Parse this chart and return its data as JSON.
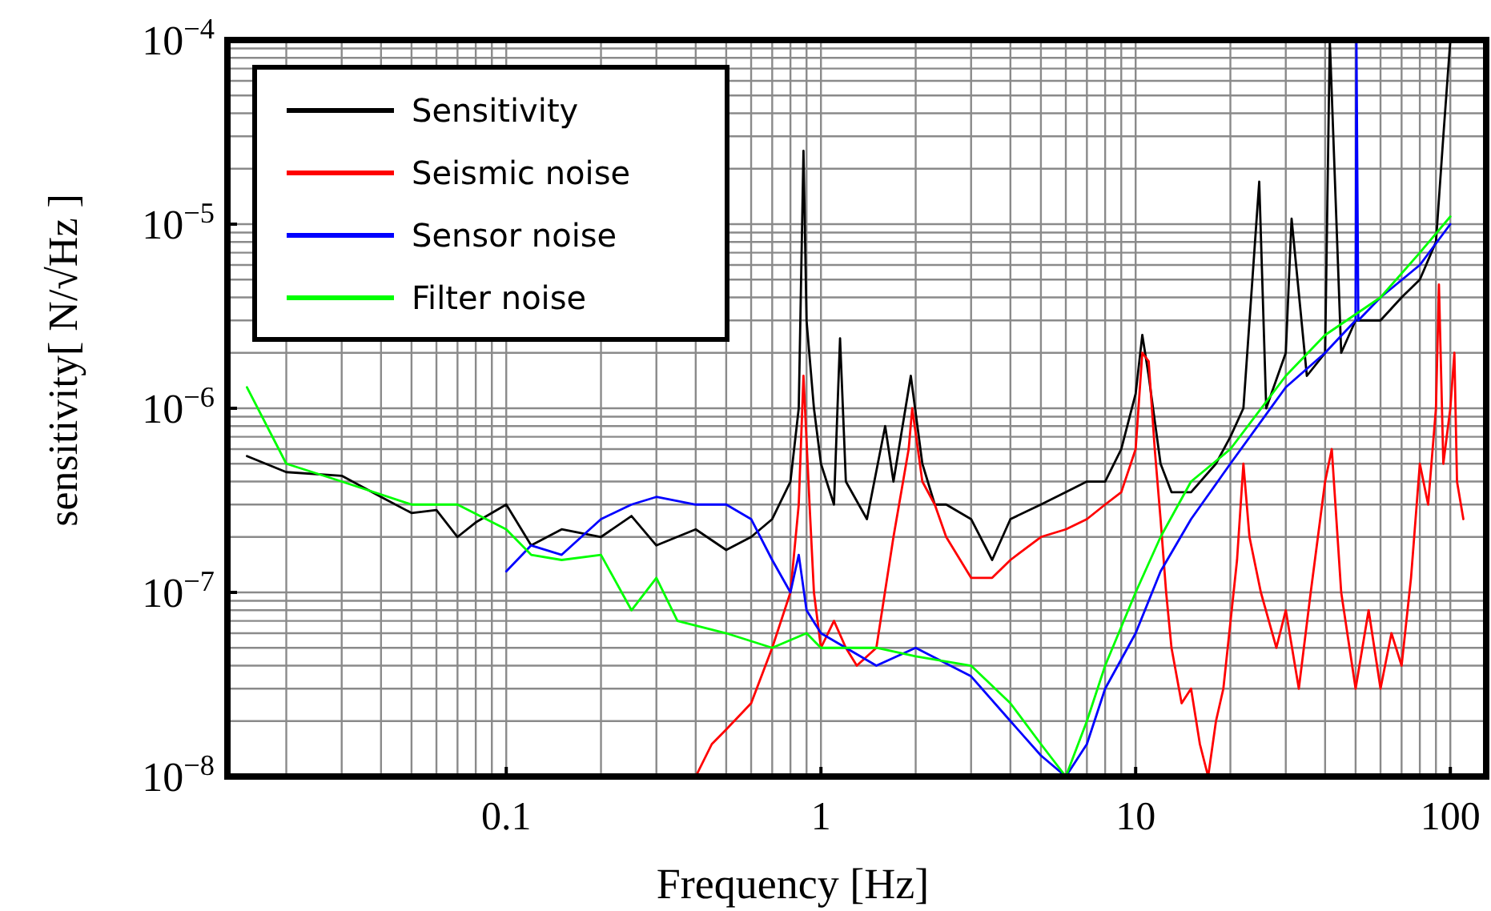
{
  "chart_data": {
    "type": "line",
    "xlabel": "Frequency [Hz]",
    "ylabel": "sensitivity[ N/√Hz ]",
    "log": "xy",
    "grid": true,
    "legend": "top left",
    "line_style": "solid",
    "marker": "none",
    "xlim": [
      0.013,
      130
    ],
    "ylim": [
      1e-08,
      0.0001
    ],
    "xticks": [
      {
        "value": 0.02,
        "label": null
      },
      {
        "value": 0.03,
        "label": null
      },
      {
        "value": 0.04,
        "label": null
      },
      {
        "value": 0.05,
        "label": null
      },
      {
        "value": 0.06,
        "label": null
      },
      {
        "value": 0.07,
        "label": null
      },
      {
        "value": 0.08,
        "label": null
      },
      {
        "value": 0.09,
        "label": null
      },
      0.1,
      {
        "value": 0.2,
        "label": null
      },
      {
        "value": 0.3,
        "label": null
      },
      {
        "value": 0.4,
        "label": null
      },
      {
        "value": 0.5,
        "label": null
      },
      {
        "value": 0.6,
        "label": null
      },
      {
        "value": 0.7,
        "label": null
      },
      {
        "value": 0.8,
        "label": null
      },
      {
        "value": 0.9,
        "label": null
      },
      1,
      {
        "value": 2,
        "label": null
      },
      {
        "value": 3,
        "label": null
      },
      {
        "value": 4,
        "label": null
      },
      {
        "value": 5,
        "label": null
      },
      {
        "value": 6,
        "label": null
      },
      {
        "value": 7,
        "label": null
      },
      {
        "value": 8,
        "label": null
      },
      {
        "value": 9,
        "label": null
      },
      10,
      {
        "value": 20,
        "label": null
      },
      {
        "value": 30,
        "label": null
      },
      {
        "value": 40,
        "label": null
      },
      {
        "value": 50,
        "label": null
      },
      {
        "value": 60,
        "label": null
      },
      {
        "value": 70,
        "label": null
      },
      {
        "value": 80,
        "label": null
      },
      {
        "value": 90,
        "label": null
      },
      100
    ],
    "yticks": [
      {
        "value": 1e-08,
        "label": "10$^{−8}$"
      },
      {
        "value": 2e-08,
        "label": null
      },
      {
        "value": 3e-08,
        "label": null
      },
      {
        "value": 4e-08,
        "label": null
      },
      {
        "value": 5e-08,
        "label": null
      },
      {
        "value": 6e-08,
        "label": null
      },
      {
        "value": 7e-08,
        "label": null
      },
      {
        "value": 8e-08,
        "label": null
      },
      {
        "value": 9e-08,
        "label": null
      },
      {
        "value": 1e-07,
        "label": "10$^{−7}$"
      },
      {
        "value": 2e-07,
        "label": null
      },
      {
        "value": 3e-07,
        "label": null
      },
      {
        "value": 4e-07,
        "label": null
      },
      {
        "value": 5e-07,
        "label": null
      },
      {
        "value": 6e-07,
        "label": null
      },
      {
        "value": 7e-07,
        "label": null
      },
      {
        "value": 8e-07,
        "label": null
      },
      {
        "value": 9e-07,
        "label": null
      },
      {
        "value": 1e-06,
        "label": "10$^{−6}$"
      },
      {
        "value": 2e-06,
        "label": null
      },
      {
        "value": 3e-06,
        "label": null
      },
      {
        "value": 4e-06,
        "label": null
      },
      {
        "value": 5e-06,
        "label": null
      },
      {
        "value": 6e-06,
        "label": null
      },
      {
        "value": 7e-06,
        "label": null
      },
      {
        "value": 8e-06,
        "label": null
      },
      {
        "value": 9e-06,
        "label": null
      },
      {
        "value": 1e-05,
        "label": "10$^{−5}$"
      },
      {
        "value": 2e-05,
        "label": null
      },
      {
        "value": 3e-05,
        "label": null
      },
      {
        "value": 4e-05,
        "label": null
      },
      {
        "value": 5e-05,
        "label": null
      },
      {
        "value": 6e-05,
        "label": null
      },
      {
        "value": 7e-05,
        "label": null
      },
      {
        "value": 8e-05,
        "label": null
      },
      {
        "value": 9e-05,
        "label": null
      },
      {
        "value": 0.0001,
        "label": "10$^{−4}$"
      }
    ],
    "series": [
      {
        "name": "Sensitivity",
        "color": "#000000",
        "x": [
          0.015,
          0.02,
          0.03,
          0.04,
          0.05,
          0.06,
          0.07,
          0.08,
          0.1,
          0.12,
          0.15,
          0.2,
          0.25,
          0.3,
          0.4,
          0.5,
          0.6,
          0.7,
          0.8,
          0.85,
          0.88,
          0.9,
          0.95,
          1.0,
          1.1,
          1.15,
          1.2,
          1.4,
          1.6,
          1.7,
          1.93,
          2.1,
          2.3,
          2.5,
          3,
          3.5,
          4,
          5,
          6,
          7,
          8,
          9,
          10,
          10.5,
          11,
          12,
          13,
          15,
          18,
          20,
          22,
          24.7,
          26,
          30,
          31.3,
          35,
          40,
          41.4,
          45,
          50,
          60,
          70,
          80,
          90,
          95,
          100
        ],
        "values": [
          5.5e-07,
          4.5e-07,
          4.3e-07,
          3.3e-07,
          2.7e-07,
          2.8e-07,
          2e-07,
          2.4e-07,
          3e-07,
          1.8e-07,
          2.2e-07,
          2e-07,
          2.6e-07,
          1.8e-07,
          2.2e-07,
          1.7e-07,
          2e-07,
          2.5e-07,
          4e-07,
          1e-06,
          2.5e-05,
          3e-06,
          1e-06,
          5e-07,
          3e-07,
          2.4e-06,
          4e-07,
          2.5e-07,
          8e-07,
          4e-07,
          1.5e-06,
          5e-07,
          3e-07,
          3e-07,
          2.5e-07,
          1.5e-07,
          2.5e-07,
          3e-07,
          3.5e-07,
          4e-07,
          4e-07,
          6e-07,
          1.2e-06,
          2.5e-06,
          1.5e-06,
          5e-07,
          3.5e-07,
          3.5e-07,
          5e-07,
          7e-07,
          1e-06,
          1.7e-05,
          1e-06,
          2e-06,
          1.07e-05,
          1.5e-06,
          2e-06,
          0.0001,
          2e-06,
          3e-06,
          3e-06,
          4e-06,
          5e-06,
          8e-06,
          3e-05,
          0.0001
        ]
      },
      {
        "name": "Seismic noise",
        "color": "#ff0000",
        "x": [
          0.4,
          0.45,
          0.5,
          0.6,
          0.7,
          0.8,
          0.85,
          0.88,
          0.92,
          0.95,
          1.0,
          1.1,
          1.2,
          1.3,
          1.5,
          1.7,
          1.9,
          1.95,
          2.1,
          2.3,
          2.5,
          3,
          3.5,
          4,
          5,
          6,
          7,
          8,
          9,
          10,
          10.5,
          11,
          11.5,
          12,
          12.5,
          13,
          14,
          15,
          16,
          17,
          18,
          19,
          21,
          22,
          23,
          25,
          28,
          30,
          33,
          36,
          40,
          42,
          45,
          50,
          55,
          60,
          65,
          70,
          75,
          80,
          85,
          90,
          92,
          95,
          100,
          103,
          105,
          110
        ],
        "values": [
          1e-08,
          1.5e-08,
          1.8e-08,
          2.5e-08,
          5e-08,
          1e-07,
          3e-07,
          1.5e-06,
          3e-07,
          1e-07,
          5e-08,
          7e-08,
          5e-08,
          4e-08,
          5e-08,
          2e-07,
          6e-07,
          1e-06,
          4e-07,
          3e-07,
          2e-07,
          1.2e-07,
          1.2e-07,
          1.5e-07,
          2e-07,
          2.2e-07,
          2.5e-07,
          3e-07,
          3.5e-07,
          6e-07,
          2e-06,
          1.8e-06,
          6e-07,
          2.5e-07,
          1e-07,
          5e-08,
          2.5e-08,
          3e-08,
          1.5e-08,
          1e-08,
          2e-08,
          3e-08,
          1.5e-07,
          5e-07,
          2e-07,
          1e-07,
          5e-08,
          8e-08,
          3e-08,
          1e-07,
          4e-07,
          6e-07,
          1e-07,
          3e-08,
          8e-08,
          3e-08,
          6e-08,
          4e-08,
          1.2e-07,
          5e-07,
          3e-07,
          1e-06,
          4.7e-06,
          5e-07,
          1e-06,
          2e-06,
          4e-07,
          2.5e-07
        ]
      },
      {
        "name": "Sensor noise",
        "color": "#0000ff",
        "x": [
          0.1,
          0.12,
          0.15,
          0.2,
          0.25,
          0.3,
          0.4,
          0.5,
          0.6,
          0.7,
          0.8,
          0.85,
          0.9,
          1.0,
          1.5,
          2,
          3,
          4,
          5,
          6,
          7,
          8,
          10,
          12,
          15,
          20,
          30,
          40,
          50,
          50.3,
          51,
          60,
          80,
          100
        ],
        "values": [
          1.3e-07,
          1.8e-07,
          1.6e-07,
          2.5e-07,
          3e-07,
          3.3e-07,
          3e-07,
          3e-07,
          2.5e-07,
          1.5e-07,
          1e-07,
          1.6e-07,
          8e-08,
          6e-08,
          4e-08,
          5e-08,
          3.5e-08,
          2e-08,
          1.3e-08,
          1e-08,
          1.5e-08,
          3e-08,
          6e-08,
          1.3e-07,
          2.5e-07,
          5e-07,
          1.3e-06,
          2e-06,
          3e-06,
          0.0001,
          3e-06,
          4e-06,
          6e-06,
          1e-05
        ]
      },
      {
        "name": "Filter noise",
        "color": "#00ff00",
        "x": [
          0.015,
          0.02,
          0.03,
          0.05,
          0.07,
          0.1,
          0.12,
          0.15,
          0.2,
          0.25,
          0.3,
          0.35,
          0.5,
          0.7,
          0.9,
          1.0,
          1.5,
          2,
          3,
          4,
          5,
          6,
          7,
          8,
          10,
          12,
          15,
          20,
          30,
          40,
          60,
          80,
          100
        ],
        "values": [
          1.3e-06,
          5e-07,
          4e-07,
          3e-07,
          3e-07,
          2.2e-07,
          1.6e-07,
          1.5e-07,
          1.6e-07,
          8e-08,
          1.2e-07,
          7e-08,
          6e-08,
          5e-08,
          6e-08,
          5e-08,
          5e-08,
          4.5e-08,
          4e-08,
          2.5e-08,
          1.5e-08,
          1e-08,
          2e-08,
          4e-08,
          1e-07,
          2e-07,
          4e-07,
          6e-07,
          1.5e-06,
          2.5e-06,
          4e-06,
          7e-06,
          1.1e-05
        ]
      }
    ]
  }
}
